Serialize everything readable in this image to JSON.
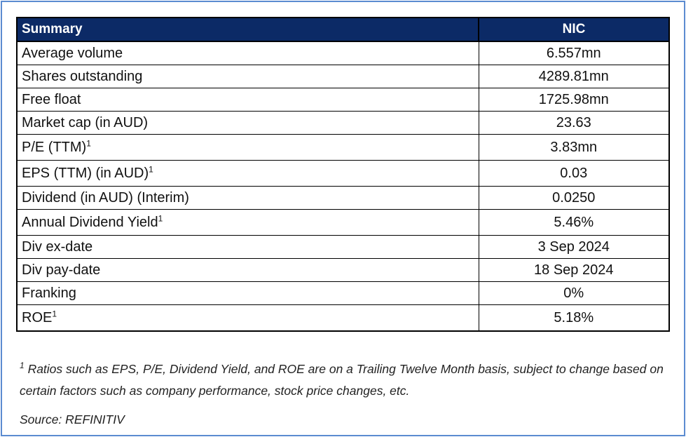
{
  "table": {
    "header": {
      "label": "Summary",
      "company": "NIC"
    },
    "rows": [
      {
        "label": "Average volume",
        "sup": "",
        "value": "6.557mn"
      },
      {
        "label": "Shares outstanding",
        "sup": "",
        "value": "4289.81mn"
      },
      {
        "label": "Free float",
        "sup": "",
        "value": "1725.98mn"
      },
      {
        "label": "Market cap (in AUD)",
        "sup": "",
        "value": "23.63"
      },
      {
        "label": "P/E (TTM)",
        "sup": "1",
        "value": "3.83mn"
      },
      {
        "label": "EPS (TTM) (in AUD)",
        "sup": "1",
        "value": "0.03"
      },
      {
        "label": "Dividend (in AUD) (Interim)",
        "sup": "",
        "value": "0.0250"
      },
      {
        "label": "Annual Dividend Yield",
        "sup": "1",
        "value": "5.46%"
      },
      {
        "label": "Div ex-date",
        "sup": "",
        "value": "3 Sep 2024"
      },
      {
        "label": "Div pay-date",
        "sup": "",
        "value": "18 Sep 2024"
      },
      {
        "label": "Franking",
        "sup": "",
        "value": "0%"
      },
      {
        "label": "ROE",
        "sup": "1",
        "value": "5.18%"
      }
    ]
  },
  "footnote": {
    "marker": "1",
    "text": "Ratios such as EPS, P/E, Dividend Yield, and ROE are on a Trailing Twelve Month basis, subject to change based on certain factors such as company performance, stock price changes, etc.",
    "source": "Source: REFINITIV"
  },
  "colors": {
    "header_bg": "#0c2a66",
    "header_text": "#ffffff",
    "frame_border": "#5b8bd0"
  }
}
